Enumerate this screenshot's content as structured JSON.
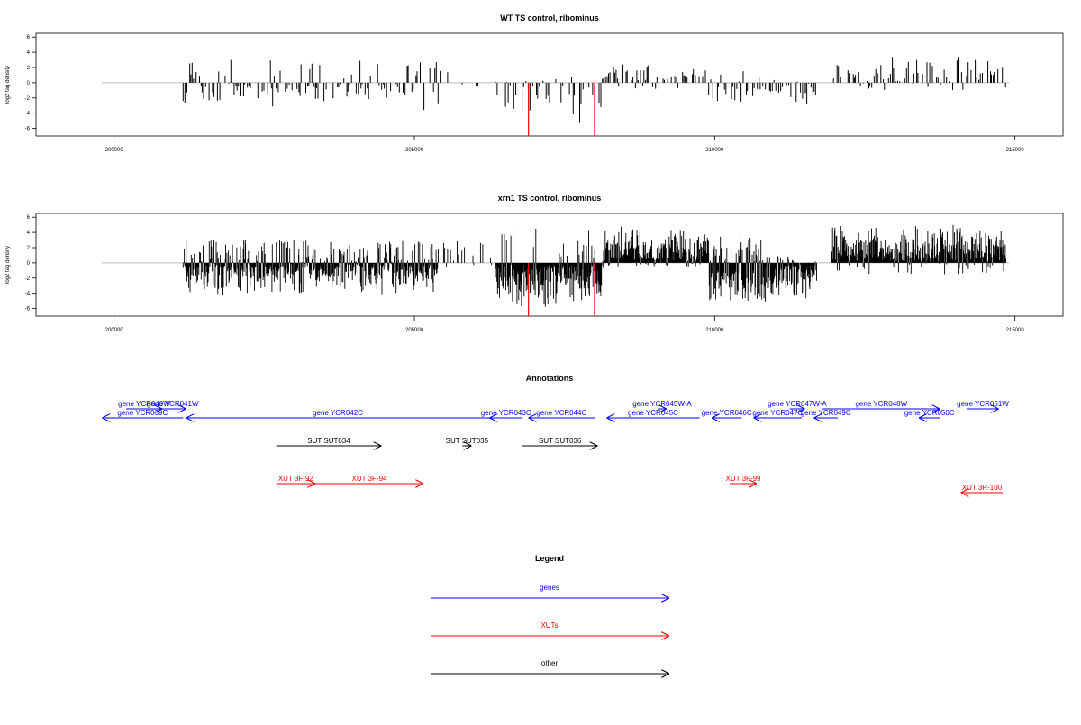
{
  "figure": {
    "background": "#ffffff"
  },
  "chart_data": [
    {
      "type": "bar",
      "title": "WT TS control, ribominus",
      "ylabel": "log2 tag density",
      "xlim": [
        198700,
        215800
      ],
      "ylim": [
        -7,
        6.5
      ],
      "xticks": [
        200000,
        205000,
        210000,
        215000
      ],
      "xtick_labels": [
        "200000",
        "205000",
        "210000",
        "215000"
      ],
      "yticks": [
        6,
        4,
        2,
        0,
        -2,
        -4,
        -6
      ],
      "ytick_labels": [
        "6",
        "4",
        "2",
        "0",
        "-2",
        "-4",
        "-6"
      ],
      "baseline": {
        "x": [
          199800,
          214900
        ],
        "y": 0,
        "color": "#bbbbbb"
      },
      "bar_color": "#000000",
      "highlight_color": "#ff0000",
      "segments": [
        {
          "range": [
            201150,
            205400
          ],
          "sign": "mixed-negative",
          "typical": [
            -3.5,
            3.0
          ]
        },
        {
          "range": [
            205400,
            206350
          ],
          "sign": "sparse",
          "typical": [
            -0.5,
            2.0
          ]
        },
        {
          "range": [
            206350,
            208150
          ],
          "sign": "negative",
          "typical": [
            -6.0,
            0.8
          ]
        },
        {
          "range": [
            208150,
            209900
          ],
          "sign": "positive",
          "typical": [
            -1.0,
            3.0
          ]
        },
        {
          "range": [
            209900,
            210800
          ],
          "sign": "mixed",
          "typical": [
            -2.5,
            2.0
          ]
        },
        {
          "range": [
            210800,
            211700
          ],
          "sign": "negative",
          "typical": [
            -3.5,
            0.5
          ]
        },
        {
          "range": [
            211950,
            214850
          ],
          "sign": "positive",
          "typical": [
            -1.0,
            4.0
          ]
        }
      ],
      "highlight_bars": [
        {
          "x": 206900,
          "y": -7.0
        },
        {
          "x": 208000,
          "y": -7.0
        }
      ]
    },
    {
      "type": "bar",
      "title": "xrn1 TS control, ribominus",
      "ylabel": "log2 tag density",
      "xlim": [
        198700,
        215800
      ],
      "ylim": [
        -7,
        6.5
      ],
      "xticks": [
        200000,
        205000,
        210000,
        215000
      ],
      "xtick_labels": [
        "200000",
        "205000",
        "210000",
        "215000"
      ],
      "yticks": [
        6,
        4,
        2,
        0,
        -2,
        -4,
        -6
      ],
      "ytick_labels": [
        "6",
        "4",
        "2",
        "0",
        "-2",
        "-4",
        "-6"
      ],
      "baseline": {
        "x": [
          199800,
          214900
        ],
        "y": 0,
        "color": "#bbbbbb"
      },
      "bar_color": "#000000",
      "highlight_color": "#ff0000",
      "segments": [
        {
          "range": [
            201150,
            205400
          ],
          "sign": "mixed-negative",
          "typical": [
            -4.5,
            3.0
          ]
        },
        {
          "range": [
            205400,
            206350
          ],
          "sign": "sparse",
          "typical": [
            -0.5,
            3.0
          ]
        },
        {
          "range": [
            206350,
            208150
          ],
          "sign": "negative",
          "typical": [
            -6.5,
            4.5
          ]
        },
        {
          "range": [
            208150,
            209900
          ],
          "sign": "positive",
          "typical": [
            -0.5,
            5.0
          ]
        },
        {
          "range": [
            209900,
            210800
          ],
          "sign": "mixed",
          "typical": [
            -5.0,
            3.5
          ]
        },
        {
          "range": [
            210800,
            211700
          ],
          "sign": "negative",
          "typical": [
            -5.5,
            1.0
          ]
        },
        {
          "range": [
            211950,
            214850
          ],
          "sign": "positive",
          "typical": [
            -1.5,
            5.5
          ]
        }
      ],
      "highlight_bars": [
        {
          "x": 206900,
          "y": -7.0
        },
        {
          "x": 208000,
          "y": -7.0
        }
      ]
    },
    {
      "type": "annotation-track",
      "title": "Annotations",
      "xlim": [
        198700,
        215800
      ],
      "features": [
        {
          "label": "gene YCR039C",
          "color": "#0000ff",
          "start": 201150,
          "end": 199800,
          "row": 2
        },
        {
          "label": "gene YCR040W",
          "color": "#0000ff",
          "start": 200200,
          "end": 200800,
          "row": 1
        },
        {
          "label": "gene YCR041W",
          "color": "#0000ff",
          "start": 200750,
          "end": 201200,
          "row": 1
        },
        {
          "label": "gene YCR042C",
          "color": "#0000ff",
          "start": 206250,
          "end": 201200,
          "row": 2
        },
        {
          "label": "gene YCR043C",
          "color": "#0000ff",
          "start": 206800,
          "end": 206250,
          "row": 2
        },
        {
          "label": "gene YCR044C",
          "color": "#0000ff",
          "start": 208000,
          "end": 206900,
          "row": 2
        },
        {
          "label": "gene YCR045W-A",
          "color": "#0000ff",
          "start": 209050,
          "end": 209200,
          "row": 1
        },
        {
          "label": "gene YCR045C",
          "color": "#0000ff",
          "start": 209750,
          "end": 208200,
          "row": 2
        },
        {
          "label": "gene YCR046C",
          "color": "#0000ff",
          "start": 210450,
          "end": 209950,
          "row": 2
        },
        {
          "label": "gene YCR047W-A",
          "color": "#0000ff",
          "start": 211250,
          "end": 211500,
          "row": 1
        },
        {
          "label": "gene YCR047C",
          "color": "#0000ff",
          "start": 211450,
          "end": 210650,
          "row": 2
        },
        {
          "label": "gene YCR048W",
          "color": "#0000ff",
          "start": 211800,
          "end": 213750,
          "row": 1
        },
        {
          "label": "gene YCR049C",
          "color": "#0000ff",
          "start": 212050,
          "end": 211650,
          "row": 2
        },
        {
          "label": "gene YCR050C",
          "color": "#0000ff",
          "start": 213750,
          "end": 213400,
          "row": 2
        },
        {
          "label": "gene YCR051W",
          "color": "#0000ff",
          "start": 214200,
          "end": 214730,
          "row": 1
        },
        {
          "label": "SUT SUT034",
          "color": "#000000",
          "start": 202700,
          "end": 204450,
          "row": 3
        },
        {
          "label": "SUT SUT035",
          "color": "#000000",
          "start": 205800,
          "end": 205950,
          "row": 3
        },
        {
          "label": "SUT SUT036",
          "color": "#000000",
          "start": 206800,
          "end": 208050,
          "row": 3
        },
        {
          "label": "XUT 3F-92",
          "color": "#ff0000",
          "start": 202700,
          "end": 203350,
          "row": 4
        },
        {
          "label": "XUT 3F-94",
          "color": "#ff0000",
          "start": 203350,
          "end": 205150,
          "row": 4
        },
        {
          "label": "XUT 3F-99",
          "color": "#ff0000",
          "start": 210250,
          "end": 210700,
          "row": 4
        },
        {
          "label": "XUT 3R-100",
          "color": "#ff0000",
          "start": 214800,
          "end": 214100,
          "row": 5
        }
      ]
    },
    {
      "type": "legend",
      "title": "Legend",
      "entries": [
        {
          "label": "genes",
          "color": "#0000ff"
        },
        {
          "label": "XUTs",
          "color": "#ff0000"
        },
        {
          "label": "other",
          "color": "#000000"
        }
      ]
    }
  ]
}
